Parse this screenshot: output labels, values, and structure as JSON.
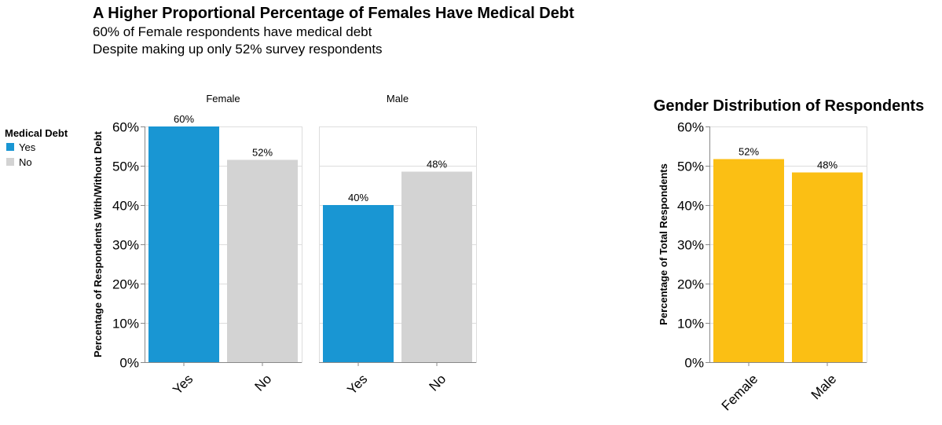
{
  "chart_data": [
    {
      "type": "bar",
      "title": "A Higher Proportional Percentage of Females Have Medical Debt",
      "subtitle": [
        "60% of Female respondents have medical debt",
        "Despite making up only 52% survey respondents"
      ],
      "ylabel": "Percentage of Respondents With/Without Debt",
      "ylim": [
        0,
        60
      ],
      "yticks": [
        "0%",
        "10%",
        "20%",
        "30%",
        "40%",
        "50%",
        "60%"
      ],
      "grid": true,
      "legend": {
        "title": "Medical Debt",
        "placement": "left",
        "entries": [
          {
            "label": "Yes",
            "color": "#1996d3"
          },
          {
            "label": "No",
            "color": "#d3d3d3"
          }
        ]
      },
      "facets": [
        {
          "name": "Female",
          "categories": [
            "Yes",
            "No"
          ],
          "values": [
            60,
            51.5
          ],
          "labels": [
            "60%",
            "52%"
          ]
        },
        {
          "name": "Male",
          "categories": [
            "Yes",
            "No"
          ],
          "values": [
            40,
            48.5
          ],
          "labels": [
            "40%",
            "48%"
          ]
        }
      ]
    },
    {
      "type": "bar",
      "title": "Gender Distribution of Respondents",
      "ylabel": "Percentage of Total Respondents",
      "ylim": [
        0,
        60
      ],
      "yticks": [
        "0%",
        "10%",
        "20%",
        "30%",
        "40%",
        "50%",
        "60%"
      ],
      "grid": true,
      "categories": [
        "Female",
        "Male"
      ],
      "values": [
        51.7,
        48.3
      ],
      "labels": [
        "52%",
        "48%"
      ],
      "color": "#fbbf14"
    }
  ]
}
